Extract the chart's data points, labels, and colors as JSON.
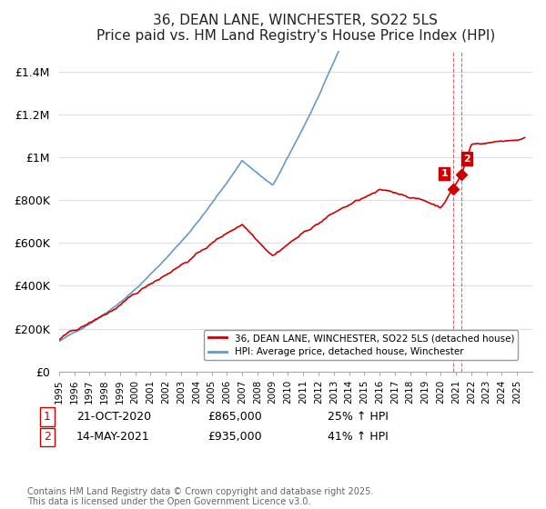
{
  "title": "36, DEAN LANE, WINCHESTER, SO22 5LS",
  "subtitle": "Price paid vs. HM Land Registry's House Price Index (HPI)",
  "ylabel_ticks": [
    "£0",
    "£200K",
    "£400K",
    "£600K",
    "£800K",
    "£1M",
    "£1.2M",
    "£1.4M"
  ],
  "ytick_values": [
    0,
    200000,
    400000,
    600000,
    800000,
    1000000,
    1200000,
    1400000
  ],
  "ylim": [
    0,
    1500000
  ],
  "xlim_start": 1995,
  "xlim_end": 2026,
  "transaction1_date": "21-OCT-2020",
  "transaction1_price": 865000,
  "transaction1_hpi": "25% ↑ HPI",
  "transaction2_date": "14-MAY-2021",
  "transaction2_price": 935000,
  "transaction2_hpi": "41% ↑ HPI",
  "line1_color": "#cc0000",
  "line2_color": "#6699cc",
  "legend1_label": "36, DEAN LANE, WINCHESTER, SO22 5LS (detached house)",
  "legend2_label": "HPI: Average price, detached house, Winchester",
  "footnote": "Contains HM Land Registry data © Crown copyright and database right 2025.\nThis data is licensed under the Open Government Licence v3.0.",
  "background_color": "#ffffff",
  "grid_color": "#dddddd",
  "marker1_x": 2020.8,
  "marker2_x": 2021.37,
  "vline_x1": 2020.8,
  "vline_x2": 2021.37
}
